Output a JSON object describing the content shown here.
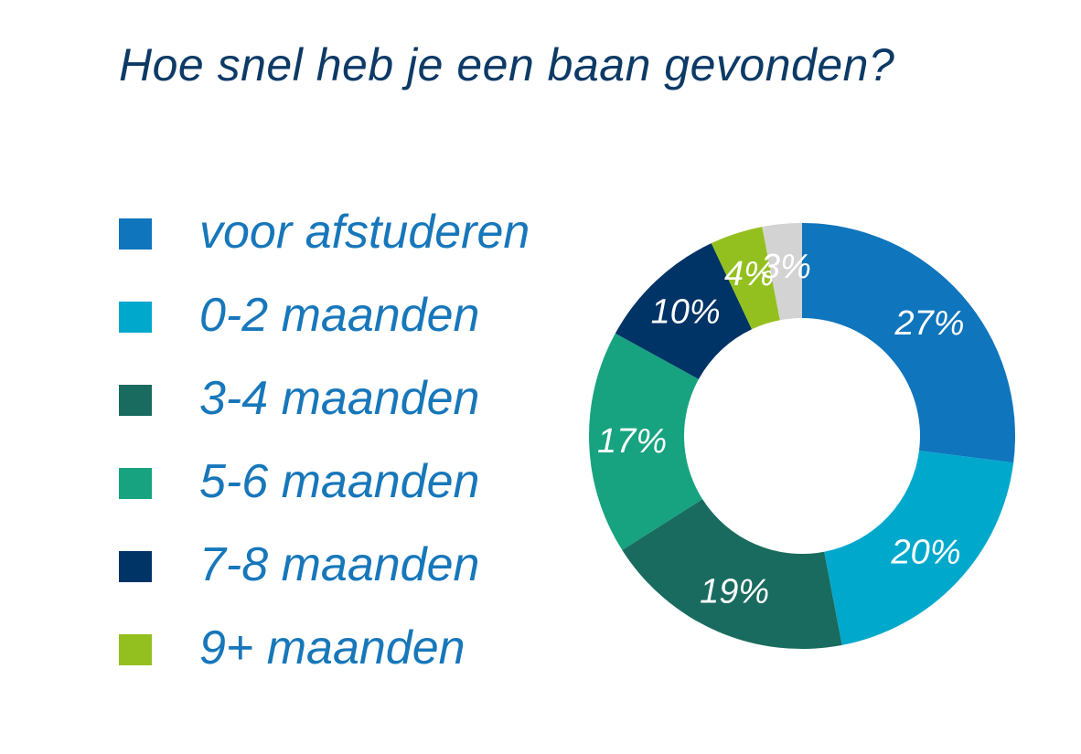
{
  "title": "Hoe snel heb je een baan gevonden?",
  "chart_data": {
    "type": "pie",
    "title": "Hoe snel heb je een baan gevonden?",
    "donut": true,
    "slices": [
      {
        "label": "voor afstuderen",
        "value": 27,
        "display": "27%",
        "color": "#0f75bc",
        "in_legend": true
      },
      {
        "label": "0-2 maanden",
        "value": 20,
        "display": "20%",
        "color": "#00a8cc",
        "in_legend": true
      },
      {
        "label": "3-4 maanden",
        "value": 19,
        "display": "19%",
        "color": "#1a6b5f",
        "in_legend": true
      },
      {
        "label": "5-6 maanden",
        "value": 17,
        "display": "17%",
        "color": "#17a37f",
        "in_legend": true
      },
      {
        "label": "7-8 maanden",
        "value": 10,
        "display": "10%",
        "color": "#003366",
        "in_legend": true
      },
      {
        "label": "9+ maanden",
        "value": 4,
        "display": "4%",
        "color": "#93c01f",
        "in_legend": true
      },
      {
        "label": "",
        "value": 3,
        "display": "3%",
        "color": "#d3d3d3",
        "in_legend": false
      }
    ],
    "legend_position": "left"
  }
}
